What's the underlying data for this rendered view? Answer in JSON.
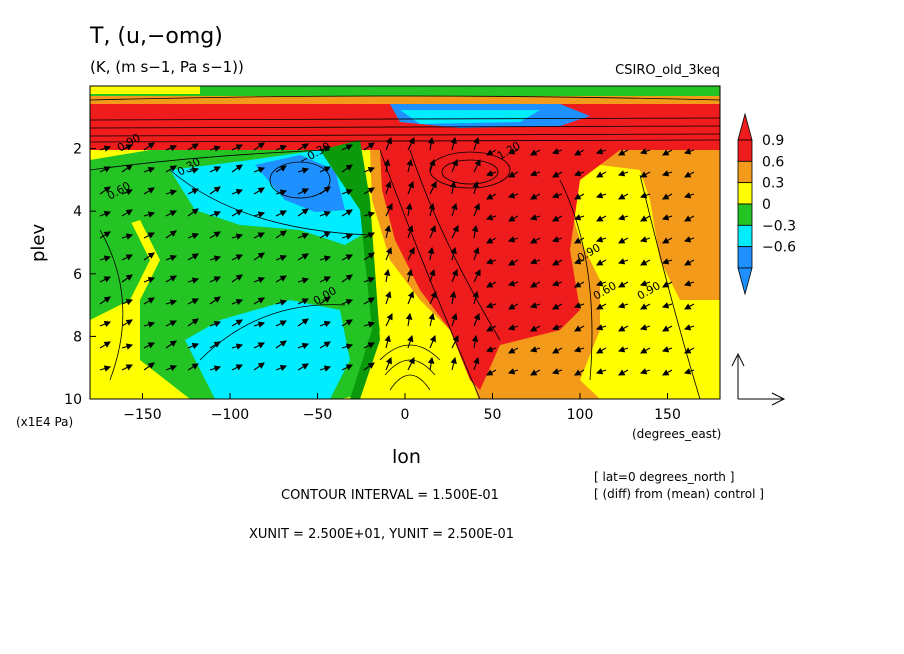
{
  "header": {
    "title": "T, (u,−omg)",
    "subtitle": "(K, (m s−1, Pa s−1))",
    "model": "CSIRO_old_3keq"
  },
  "axes": {
    "xlabel": "lon",
    "ylabel": "plev",
    "xunits": "(degrees_east)",
    "yunits": "(x1E4 Pa)"
  },
  "footer": {
    "contour_interval": "CONTOUR INTERVAL = 1.500E-01",
    "vector_units": "XUNIT = 2.500E+01, YUNIT = 2.500E-01",
    "lat_note": "[ lat=0 degrees_north ]",
    "diff_note": "[ (diff) from (mean) control ]"
  },
  "colors": {
    "red": "#ee1c1c",
    "orange": "#f39a1a",
    "yellow": "#ffff00",
    "green": "#23c423",
    "cyan": "#00ecff",
    "blue": "#1e90ff",
    "dark_green": "#0b9a0b"
  },
  "chart_data": {
    "type": "heatmap",
    "title": "T, (u,−omg)",
    "xlabel": "lon",
    "ylabel": "plev",
    "xlim": [
      -180,
      180
    ],
    "ylim": [
      10,
      0
    ],
    "y_inverted": true,
    "x_ticks": [
      -150,
      -100,
      -50,
      0,
      50,
      100,
      150
    ],
    "y_ticks": [
      2,
      4,
      6,
      8,
      10
    ],
    "colorbar": {
      "levels": [
        0.9,
        0.6,
        0.3,
        0,
        -0.3,
        -0.6
      ],
      "level_labels": [
        "0.9",
        "0.6",
        "0.3",
        "0",
        "−0.3",
        "−0.6"
      ],
      "colors": [
        "#ee1c1c",
        "#f39a1a",
        "#ffff00",
        "#23c423",
        "#00ecff",
        "#1e90ff"
      ]
    },
    "contour_labels": [
      "0.90",
      "0.60",
      "0.30",
      "0.00",
      "−0.30",
      "0.90",
      "1.20",
      "0.90",
      "0.60"
    ],
    "overlay": "vectors (u, −omg)"
  }
}
